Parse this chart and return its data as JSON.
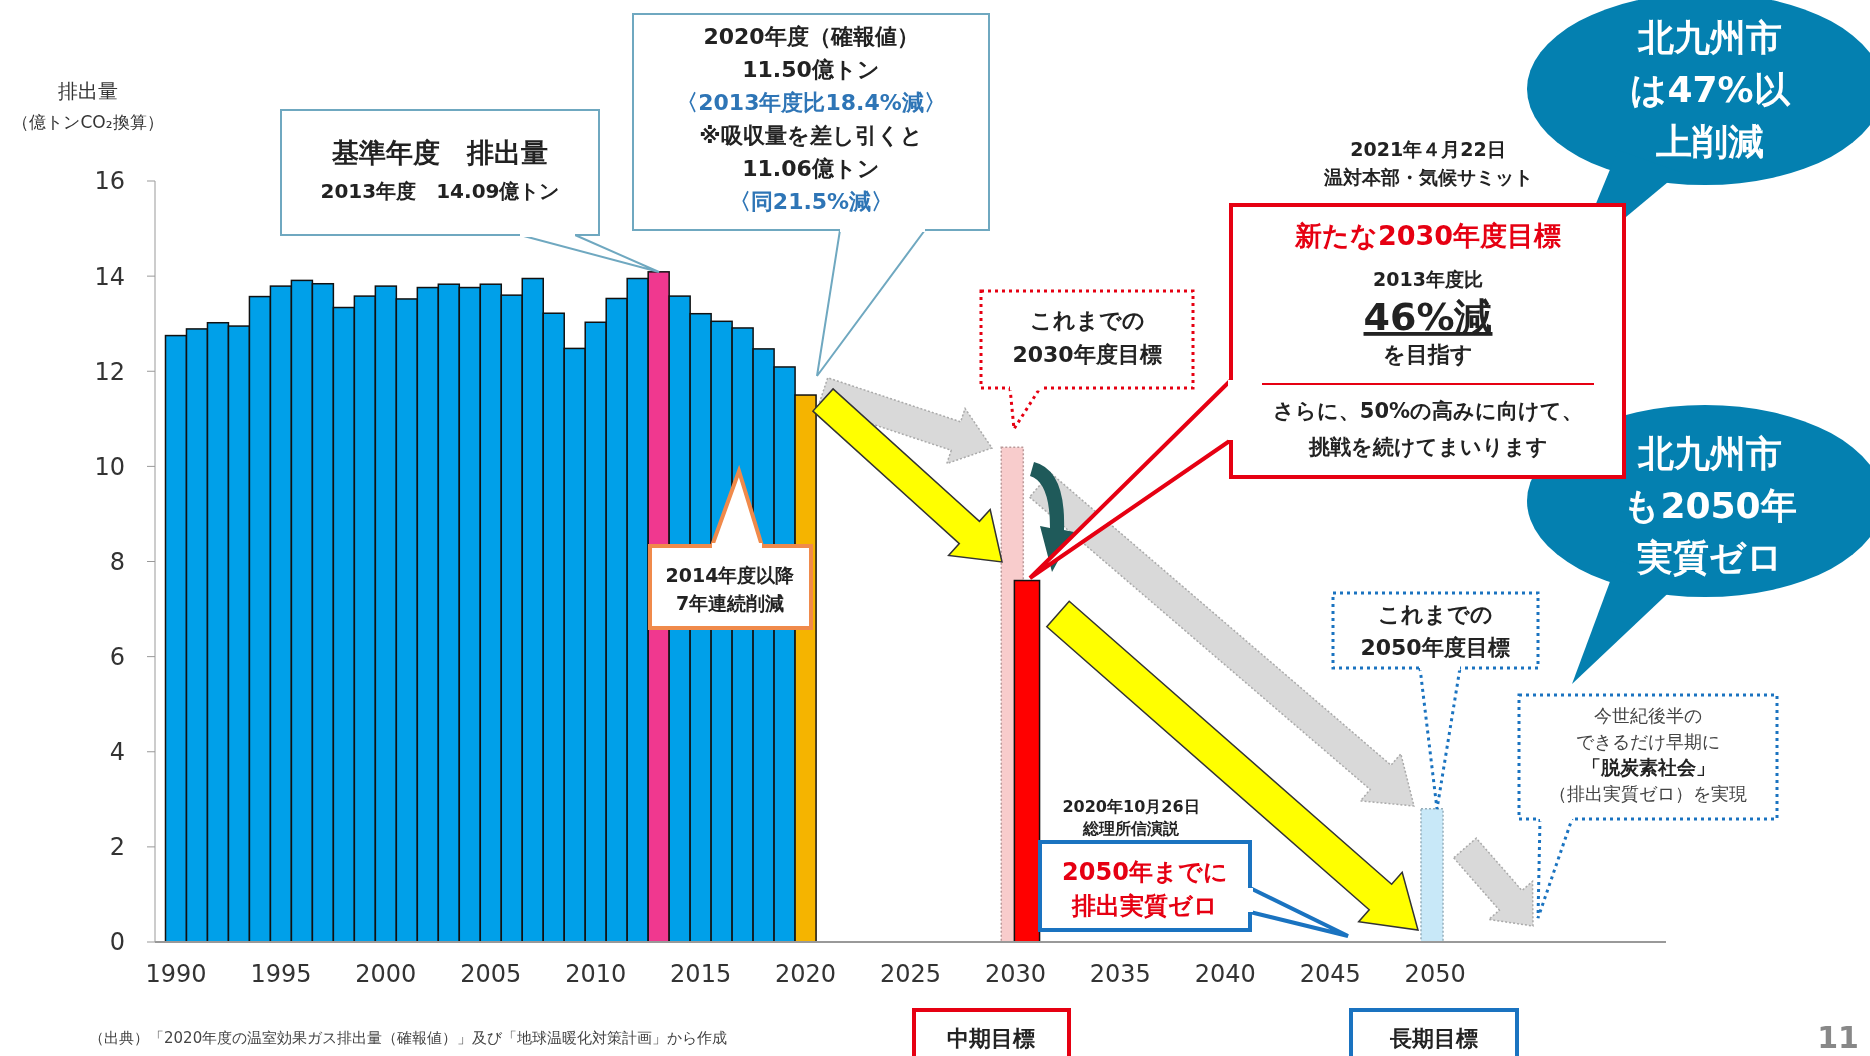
{
  "chart_data": {
    "type": "bar",
    "ylabel": "排出量（億トンCO₂換算）",
    "xlim": [
      1989,
      2061
    ],
    "xticks": [
      1990,
      1995,
      2000,
      2005,
      2010,
      2015,
      2020,
      2025,
      2030,
      2035,
      2040,
      2045,
      2050
    ],
    "ylim": [
      0,
      16
    ],
    "yticks": [
      0,
      2,
      4,
      6,
      8,
      10,
      12,
      14,
      16
    ],
    "series": [
      {
        "x": [
          1990,
          1991,
          1992,
          1993,
          1994,
          1995,
          1996,
          1997,
          1998,
          1999,
          2000,
          2001,
          2002,
          2003,
          2004,
          2005,
          2006,
          2007,
          2008,
          2009,
          2010,
          2011,
          2012,
          2013,
          2014,
          2015,
          2016,
          2017,
          2018,
          2019,
          2020
        ],
        "values": [
          12.75,
          12.89,
          13.02,
          12.95,
          13.57,
          13.79,
          13.91,
          13.84,
          13.34,
          13.58,
          13.79,
          13.52,
          13.76,
          13.83,
          13.76,
          13.83,
          13.6,
          13.95,
          13.22,
          12.48,
          13.03,
          13.53,
          13.95,
          14.09,
          13.58,
          13.21,
          13.05,
          12.91,
          12.47,
          12.09,
          11.5
        ],
        "colors": [
          "#00a0e9",
          "#00a0e9",
          "#00a0e9",
          "#00a0e9",
          "#00a0e9",
          "#00a0e9",
          "#00a0e9",
          "#00a0e9",
          "#00a0e9",
          "#00a0e9",
          "#00a0e9",
          "#00a0e9",
          "#00a0e9",
          "#00a0e9",
          "#00a0e9",
          "#00a0e9",
          "#00a0e9",
          "#00a0e9",
          "#00a0e9",
          "#00a0e9",
          "#00a0e9",
          "#00a0e9",
          "#00a0e9",
          "#f0388f",
          "#00a0e9",
          "#00a0e9",
          "#00a0e9",
          "#00a0e9",
          "#00a0e9",
          "#00a0e9",
          "#f5b400"
        ]
      },
      {
        "x": [
          2030,
          2050
        ],
        "values": [
          10.4,
          2.8
        ],
        "colors": [
          "#f8cccc",
          "#c8e8f8"
        ]
      },
      {
        "x": [
          2030
        ],
        "values": [
          7.6
        ],
        "colors": [
          "#ff0000"
        ]
      }
    ],
    "annotations": [
      "（出典）「2020年度の温室効果ガス排出量（確報値）」及び「地球温暖化対策計画」から作成",
      "基準年度　排出量",
      "2013年度　14.09億トン",
      "2020年度（確報値）",
      "11.50億トン",
      "〈2013年度比18.4%減〉",
      "※吸収量を差し引くと",
      "11.06億トン",
      "〈同21.5%減〉",
      "2014年度以降",
      "7年連続削減",
      "2021年４月22日",
      "温対本部・気候サミット",
      "新たな2030年度目標",
      "2013年度比",
      "46%減",
      "を目指す",
      "さらに、50%の高みに向けて、",
      "挑戦を続けてまいります",
      "これまでの",
      "2030年度目標",
      "2020年10月26日",
      "総理所信演説",
      "2050年までに",
      "排出実質ゼロ",
      "これまでの",
      "2050年度目標",
      "今世紀後半の",
      "できるだけ早期に",
      "「脱炭素社会」",
      "（排出実質ゼロ）を実現",
      "中期目標",
      "長期目標",
      "北九州市",
      "は47%以",
      "上削減",
      "北九州市",
      "も2050年",
      "実質ゼロ",
      "11"
    ]
  }
}
